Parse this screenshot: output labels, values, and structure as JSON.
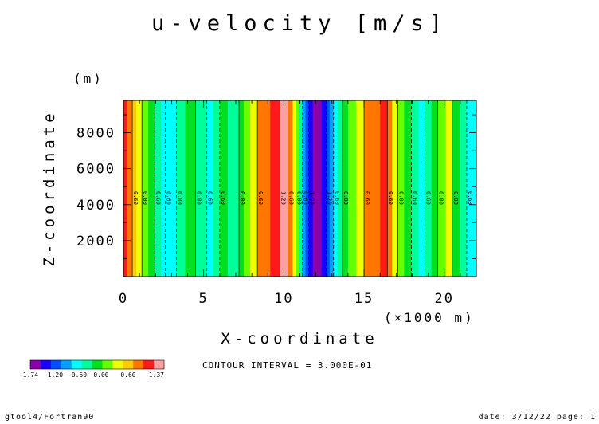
{
  "chart_data": {
    "type": "heatmap",
    "title": "u-velocity [m/s]",
    "xlabel": "X-coordinate",
    "ylabel": "Z-coordinate",
    "x_unit": "(×1000 m)",
    "y_unit": "(m)",
    "xlim": [
      0,
      22
    ],
    "ylim": [
      0,
      9800
    ],
    "x_ticks": [
      0,
      5,
      10,
      15,
      20
    ],
    "x_tick_labels": [
      "0",
      "5",
      "10",
      "15",
      "20"
    ],
    "y_ticks": [
      2000,
      4000,
      6000,
      8000
    ],
    "y_tick_labels": [
      "2000",
      "4000",
      "6000",
      "8000"
    ],
    "contour_interval_text": "CONTOUR INTERVAL = 3.000E-01",
    "colorbar": {
      "colors": [
        "#8a00aa",
        "#1a00ff",
        "#0050ff",
        "#00a0ff",
        "#00ffff",
        "#00ff99",
        "#00e020",
        "#66ff00",
        "#eeff00",
        "#ffcc00",
        "#ff7700",
        "#ff1a1a",
        "#ffa0a0"
      ],
      "labels": [
        "-1.74",
        "-1.20",
        "-0.60",
        "0.00",
        "0.60",
        "1.37"
      ]
    },
    "columns": [
      {
        "x0": 0.0,
        "x1": 0.25,
        "color": "#ff1a1a"
      },
      {
        "x0": 0.25,
        "x1": 0.55,
        "color": "#ff7700"
      },
      {
        "x0": 0.55,
        "x1": 0.8,
        "color": "#ffcc00"
      },
      {
        "x0": 0.8,
        "x1": 1.15,
        "color": "#eeff00"
      },
      {
        "x0": 1.15,
        "x1": 1.55,
        "color": "#66ff00"
      },
      {
        "x0": 1.55,
        "x1": 1.95,
        "color": "#00e020"
      },
      {
        "x0": 1.95,
        "x1": 2.35,
        "color": "#00ff99"
      },
      {
        "x0": 2.35,
        "x1": 2.8,
        "color": "#00ffff"
      },
      {
        "x0": 2.8,
        "x1": 3.3,
        "color": "#00ffff"
      },
      {
        "x0": 3.3,
        "x1": 3.85,
        "color": "#00ff99"
      },
      {
        "x0": 3.85,
        "x1": 4.5,
        "color": "#00e020"
      },
      {
        "x0": 4.5,
        "x1": 5.2,
        "color": "#00ff99"
      },
      {
        "x0": 5.2,
        "x1": 5.6,
        "color": "#00ffff"
      },
      {
        "x0": 5.6,
        "x1": 6.0,
        "color": "#00ff99"
      },
      {
        "x0": 6.0,
        "x1": 6.5,
        "color": "#00e020"
      },
      {
        "x0": 6.5,
        "x1": 7.2,
        "color": "#00ff99"
      },
      {
        "x0": 7.2,
        "x1": 7.5,
        "color": "#00e020"
      },
      {
        "x0": 7.5,
        "x1": 7.9,
        "color": "#66ff00"
      },
      {
        "x0": 7.9,
        "x1": 8.35,
        "color": "#eeff00"
      },
      {
        "x0": 8.35,
        "x1": 9.15,
        "color": "#ff7700"
      },
      {
        "x0": 9.15,
        "x1": 9.75,
        "color": "#ff1a1a"
      },
      {
        "x0": 9.75,
        "x1": 10.25,
        "color": "#ffa0a0"
      },
      {
        "x0": 10.25,
        "x1": 10.55,
        "color": "#ff7700"
      },
      {
        "x0": 10.55,
        "x1": 10.75,
        "color": "#eeff00"
      },
      {
        "x0": 10.75,
        "x1": 10.95,
        "color": "#66ff00"
      },
      {
        "x0": 10.95,
        "x1": 11.15,
        "color": "#00ff99"
      },
      {
        "x0": 11.15,
        "x1": 11.35,
        "color": "#00a0ff"
      },
      {
        "x0": 11.35,
        "x1": 11.55,
        "color": "#0050ff"
      },
      {
        "x0": 11.55,
        "x1": 11.8,
        "color": "#1a00ff"
      },
      {
        "x0": 11.8,
        "x1": 12.35,
        "color": "#8a00aa"
      },
      {
        "x0": 12.35,
        "x1": 12.65,
        "color": "#1a00ff"
      },
      {
        "x0": 12.65,
        "x1": 12.85,
        "color": "#0050ff"
      },
      {
        "x0": 12.85,
        "x1": 13.1,
        "color": "#00a0ff"
      },
      {
        "x0": 13.1,
        "x1": 13.35,
        "color": "#00ffff"
      },
      {
        "x0": 13.35,
        "x1": 13.65,
        "color": "#00ff99"
      },
      {
        "x0": 13.65,
        "x1": 14.0,
        "color": "#00e020"
      },
      {
        "x0": 14.0,
        "x1": 14.5,
        "color": "#66ff00"
      },
      {
        "x0": 14.5,
        "x1": 15.0,
        "color": "#eeff00"
      },
      {
        "x0": 15.0,
        "x1": 16.0,
        "color": "#ff7700"
      },
      {
        "x0": 16.0,
        "x1": 16.45,
        "color": "#ff1a1a"
      },
      {
        "x0": 16.45,
        "x1": 16.75,
        "color": "#ff7700"
      },
      {
        "x0": 16.75,
        "x1": 17.1,
        "color": "#eeff00"
      },
      {
        "x0": 17.1,
        "x1": 17.5,
        "color": "#66ff00"
      },
      {
        "x0": 17.5,
        "x1": 17.95,
        "color": "#00e020"
      },
      {
        "x0": 17.95,
        "x1": 18.4,
        "color": "#00ff99"
      },
      {
        "x0": 18.4,
        "x1": 18.8,
        "color": "#00ffff"
      },
      {
        "x0": 18.8,
        "x1": 19.2,
        "color": "#00ff99"
      },
      {
        "x0": 19.2,
        "x1": 19.6,
        "color": "#00e020"
      },
      {
        "x0": 19.6,
        "x1": 20.1,
        "color": "#66ff00"
      },
      {
        "x0": 20.1,
        "x1": 20.5,
        "color": "#eeff00"
      },
      {
        "x0": 20.5,
        "x1": 21.0,
        "color": "#00e020"
      },
      {
        "x0": 21.0,
        "x1": 21.4,
        "color": "#00ff99"
      },
      {
        "x0": 21.4,
        "x1": 22.0,
        "color": "#00ffff"
      }
    ],
    "contours": [
      {
        "x": 0.55,
        "dashed": false,
        "label": "0.60"
      },
      {
        "x": 1.15,
        "dashed": false,
        "label": "0.00"
      },
      {
        "x": 1.95,
        "dashed": true,
        "label": "0.60"
      },
      {
        "x": 2.6,
        "dashed": true,
        "label": "0.60"
      },
      {
        "x": 3.3,
        "dashed": true,
        "label": "0.00"
      },
      {
        "x": 4.5,
        "dashed": false,
        "label": "0.00"
      },
      {
        "x": 5.2,
        "dashed": true,
        "label": "0.60"
      },
      {
        "x": 6.0,
        "dashed": true,
        "label": "0.60"
      },
      {
        "x": 7.2,
        "dashed": false,
        "label": "0.00"
      },
      {
        "x": 8.35,
        "dashed": false,
        "label": "0.60"
      },
      {
        "x": 9.75,
        "dashed": false,
        "label": "1.20"
      },
      {
        "x": 10.25,
        "dashed": false,
        "label": "0.60"
      },
      {
        "x": 10.75,
        "dashed": false,
        "label": "0.00"
      },
      {
        "x": 11.15,
        "dashed": true,
        "label": "0.60"
      },
      {
        "x": 11.55,
        "dashed": true,
        "label": "1.20"
      },
      {
        "x": 12.65,
        "dashed": true,
        "label": "1.20"
      },
      {
        "x": 13.1,
        "dashed": true,
        "label": "0.60"
      },
      {
        "x": 13.65,
        "dashed": false,
        "label": "0.00"
      },
      {
        "x": 15.0,
        "dashed": false,
        "label": "0.60"
      },
      {
        "x": 16.45,
        "dashed": false,
        "label": "0.60"
      },
      {
        "x": 17.1,
        "dashed": false,
        "label": "0.00"
      },
      {
        "x": 17.95,
        "dashed": true,
        "label": "0.60"
      },
      {
        "x": 18.8,
        "dashed": true,
        "label": "0.60"
      },
      {
        "x": 19.6,
        "dashed": false,
        "label": "0.00"
      },
      {
        "x": 20.5,
        "dashed": false,
        "label": "0.00"
      },
      {
        "x": 21.4,
        "dashed": true,
        "label": "0.60"
      }
    ]
  },
  "footer": {
    "left": "gtool4/Fortran90",
    "right": "date: 3/12/22 page: 1"
  }
}
